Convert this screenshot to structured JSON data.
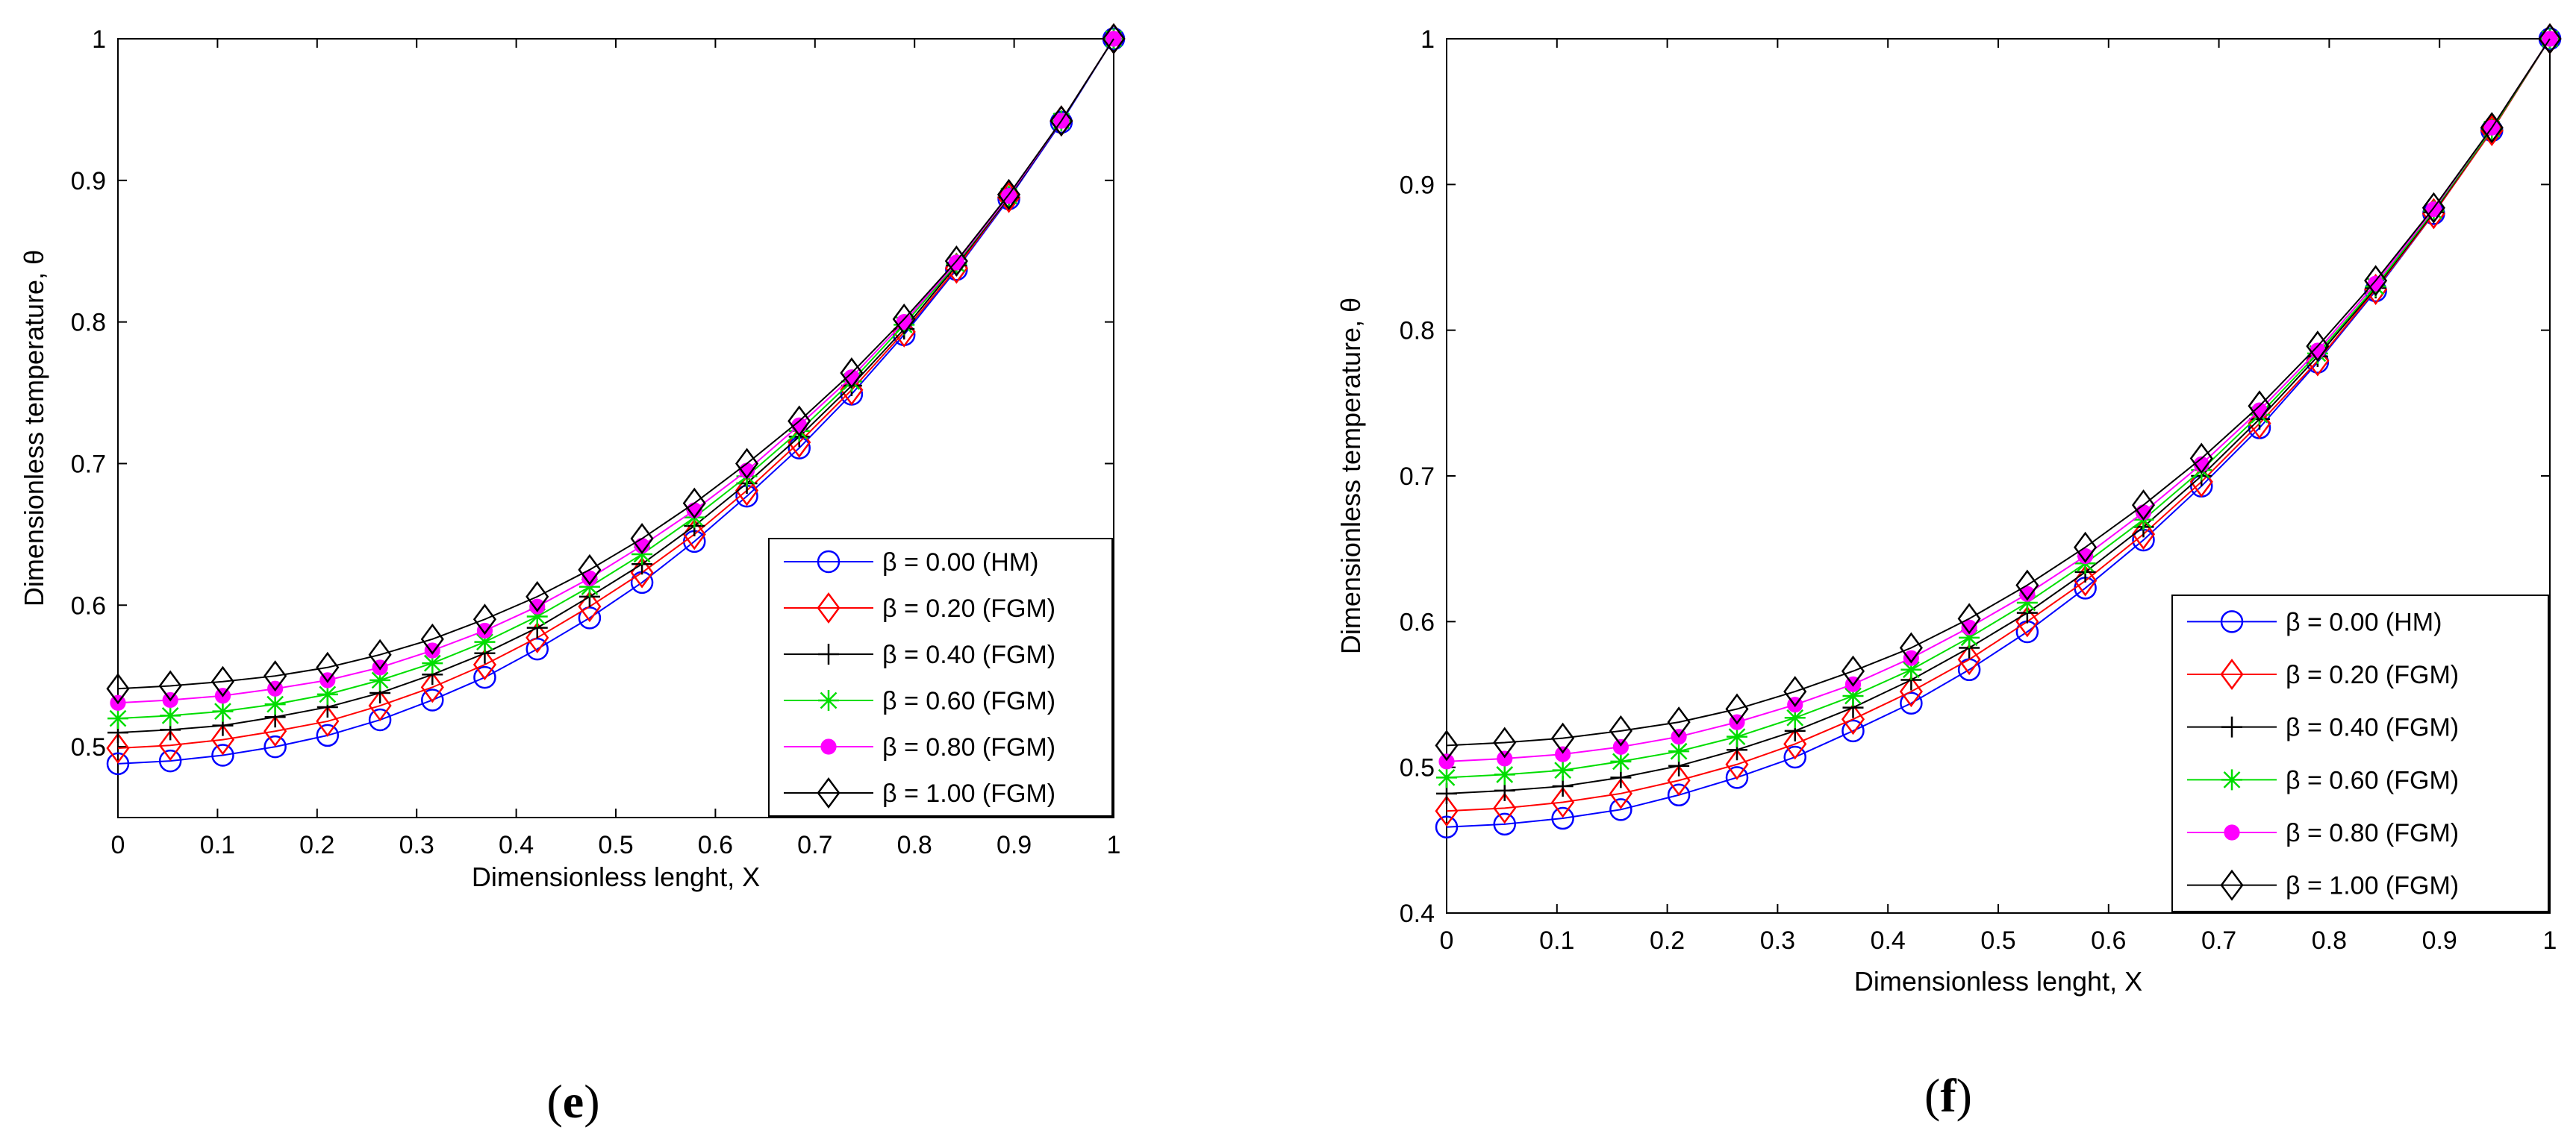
{
  "chart_data": [
    {
      "type": "line",
      "panel_label": "e",
      "xlabel": "Dimensionless lenght, X",
      "ylabel": "Dimensionless temperature, θ",
      "xlim": [
        0,
        1
      ],
      "ylim": [
        0.45,
        1
      ],
      "xticks": [
        "0",
        "0.1",
        "0.2",
        "0.3",
        "0.4",
        "0.5",
        "0.6",
        "0.7",
        "0.8",
        "0.9",
        "1"
      ],
      "yticks": [
        "0.5",
        "0.6",
        "0.7",
        "0.8",
        "0.9",
        "1"
      ],
      "legend_position": "lower-right",
      "x": [
        0,
        0.0526,
        0.1053,
        0.1579,
        0.2105,
        0.2632,
        0.3158,
        0.3684,
        0.4211,
        0.4737,
        0.5263,
        0.5789,
        0.6316,
        0.6842,
        0.7368,
        0.7895,
        0.8421,
        0.8947,
        0.9474,
        1.0
      ],
      "series": [
        {
          "name": "β = 0.00 (HM)",
          "color": "#0000ff",
          "marker": "circle",
          "values": [
            0.488,
            0.49,
            0.494,
            0.5,
            0.508,
            0.519,
            0.533,
            0.549,
            0.569,
            0.591,
            0.616,
            0.645,
            0.677,
            0.711,
            0.749,
            0.791,
            0.837,
            0.887,
            0.941,
            1.0
          ]
        },
        {
          "name": "β = 0.20 (FGM)",
          "color": "#ff0000",
          "marker": "diamond",
          "values": [
            0.499,
            0.501,
            0.505,
            0.511,
            0.518,
            0.529,
            0.542,
            0.558,
            0.577,
            0.599,
            0.623,
            0.65,
            0.681,
            0.715,
            0.752,
            0.793,
            0.838,
            0.888,
            0.942,
            1.0
          ]
        },
        {
          "name": "β = 0.40 (FGM)",
          "color": "#000000",
          "marker": "plus",
          "values": [
            0.51,
            0.512,
            0.515,
            0.521,
            0.528,
            0.538,
            0.551,
            0.566,
            0.584,
            0.606,
            0.629,
            0.656,
            0.686,
            0.719,
            0.755,
            0.795,
            0.84,
            0.888,
            0.942,
            1.0
          ]
        },
        {
          "name": "β = 0.60 (FGM)",
          "color": "#00dd00",
          "marker": "star",
          "values": [
            0.52,
            0.522,
            0.525,
            0.53,
            0.537,
            0.547,
            0.559,
            0.574,
            0.592,
            0.613,
            0.636,
            0.662,
            0.691,
            0.723,
            0.758,
            0.798,
            0.841,
            0.889,
            0.942,
            1.0
          ]
        },
        {
          "name": "β = 0.80 (FGM)",
          "color": "#ff00ff",
          "marker": "dot",
          "values": [
            0.531,
            0.533,
            0.536,
            0.541,
            0.547,
            0.556,
            0.568,
            0.582,
            0.599,
            0.619,
            0.642,
            0.667,
            0.695,
            0.727,
            0.761,
            0.8,
            0.842,
            0.889,
            0.942,
            1.0
          ]
        },
        {
          "name": "β = 1.00 (FGM)",
          "color": "#000000",
          "marker": "diamond",
          "values": [
            0.541,
            0.543,
            0.546,
            0.55,
            0.556,
            0.565,
            0.576,
            0.59,
            0.606,
            0.625,
            0.647,
            0.672,
            0.7,
            0.73,
            0.764,
            0.802,
            0.843,
            0.89,
            0.942,
            1.0
          ]
        }
      ]
    },
    {
      "type": "line",
      "panel_label": "f",
      "xlabel": "Dimensionless lenght, X",
      "ylabel": "Dimensionless temperature, θ",
      "xlim": [
        0,
        1
      ],
      "ylim": [
        0.4,
        1
      ],
      "xticks": [
        "0",
        "0.1",
        "0.2",
        "0.3",
        "0.4",
        "0.5",
        "0.6",
        "0.7",
        "0.8",
        "0.9",
        "1"
      ],
      "yticks": [
        "0.4",
        "0.5",
        "0.6",
        "0.7",
        "0.8",
        "0.9",
        "1"
      ],
      "legend_position": "lower-right",
      "x": [
        0,
        0.0526,
        0.1053,
        0.1579,
        0.2105,
        0.2632,
        0.3158,
        0.3684,
        0.4211,
        0.4737,
        0.5263,
        0.5789,
        0.6316,
        0.6842,
        0.7368,
        0.7895,
        0.8421,
        0.8947,
        0.9474,
        1.0
      ],
      "series": [
        {
          "name": "β = 0.00 (HM)",
          "color": "#0000ff",
          "marker": "circle",
          "values": [
            0.459,
            0.461,
            0.465,
            0.471,
            0.481,
            0.493,
            0.507,
            0.525,
            0.544,
            0.567,
            0.593,
            0.623,
            0.656,
            0.693,
            0.733,
            0.778,
            0.827,
            0.88,
            0.937,
            1.0
          ]
        },
        {
          "name": "β = 0.20 (FGM)",
          "color": "#ff0000",
          "marker": "diamond",
          "values": [
            0.47,
            0.472,
            0.476,
            0.482,
            0.491,
            0.502,
            0.516,
            0.533,
            0.552,
            0.574,
            0.6,
            0.628,
            0.66,
            0.696,
            0.736,
            0.779,
            0.828,
            0.88,
            0.937,
            1.0
          ]
        },
        {
          "name": "β = 0.40 (FGM)",
          "color": "#000000",
          "marker": "plus",
          "values": [
            0.482,
            0.484,
            0.487,
            0.493,
            0.501,
            0.512,
            0.525,
            0.541,
            0.56,
            0.582,
            0.606,
            0.634,
            0.665,
            0.7,
            0.739,
            0.782,
            0.829,
            0.881,
            0.938,
            1.0
          ]
        },
        {
          "name": "β = 0.60 (FGM)",
          "color": "#00dd00",
          "marker": "star",
          "values": [
            0.493,
            0.495,
            0.498,
            0.504,
            0.511,
            0.521,
            0.534,
            0.549,
            0.567,
            0.589,
            0.613,
            0.64,
            0.67,
            0.704,
            0.742,
            0.784,
            0.83,
            0.882,
            0.938,
            1.0
          ]
        },
        {
          "name": "β = 0.80 (FGM)",
          "color": "#ff00ff",
          "marker": "dot",
          "values": [
            0.504,
            0.506,
            0.509,
            0.514,
            0.521,
            0.531,
            0.543,
            0.557,
            0.575,
            0.596,
            0.619,
            0.645,
            0.675,
            0.708,
            0.745,
            0.786,
            0.832,
            0.883,
            0.939,
            1.0
          ]
        },
        {
          "name": "β = 1.00 (FGM)",
          "color": "#000000",
          "marker": "diamond",
          "values": [
            0.515,
            0.517,
            0.52,
            0.525,
            0.531,
            0.54,
            0.552,
            0.566,
            0.582,
            0.602,
            0.625,
            0.651,
            0.68,
            0.712,
            0.748,
            0.789,
            0.834,
            0.884,
            0.939,
            1.0
          ]
        }
      ]
    }
  ]
}
